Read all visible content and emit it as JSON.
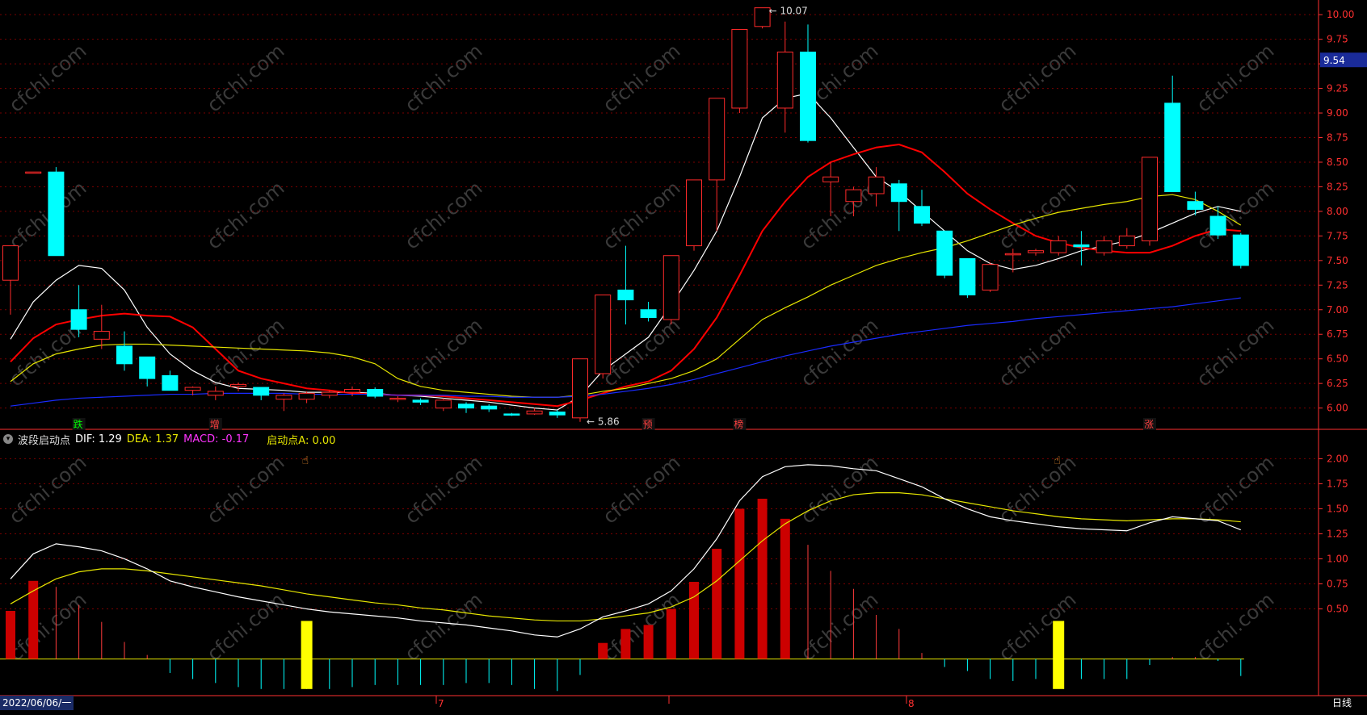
{
  "hud": {
    "indicator_name": "波段启动点",
    "dif_label": "DIF: 1.29",
    "dea_label": "DEA: 1.37",
    "macd_label": "MACD: -0.17",
    "start_label": "启动点A: 0.00"
  },
  "footer": {
    "date": "2022/06/06/一",
    "period": "日线"
  },
  "price_tag": "9.54",
  "colors": {
    "up": "#ff2a2a",
    "down": "#00ffff",
    "ma1": "#ffffff",
    "ma2": "#ff0000",
    "ma3": "#e6e600",
    "ma4": "#1a2bff",
    "grid": "#7a0000",
    "axis": "#ff3030",
    "dif": "#ffffff",
    "dea": "#e6e600",
    "signal": "#ffff00",
    "watermark": "#3a3a3a"
  },
  "watermark": "cfchi.com",
  "chart_data": [
    {
      "type": "candlestick",
      "ylim": [
        5.8,
        10.1
      ],
      "yticks": [
        "6.00",
        "6.25",
        "6.50",
        "6.75",
        "7.00",
        "7.25",
        "7.50",
        "7.75",
        "8.00",
        "8.25",
        "8.50",
        "8.75",
        "9.00",
        "9.25",
        "9.50",
        "9.75",
        "10.00"
      ],
      "candles": [
        {
          "o": 7.3,
          "h": 7.65,
          "l": 6.95,
          "c": 7.65
        },
        {
          "o": 8.4,
          "h": 8.4,
          "l": 8.4,
          "c": 8.4
        },
        {
          "o": 8.4,
          "h": 8.45,
          "l": 7.55,
          "c": 7.55
        },
        {
          "o": 7.0,
          "h": 7.25,
          "l": 6.72,
          "c": 6.8
        },
        {
          "o": 6.7,
          "h": 7.05,
          "l": 6.6,
          "c": 6.78
        },
        {
          "o": 6.63,
          "h": 6.78,
          "l": 6.38,
          "c": 6.45
        },
        {
          "o": 6.52,
          "h": 6.52,
          "l": 6.22,
          "c": 6.3
        },
        {
          "o": 6.33,
          "h": 6.38,
          "l": 6.18,
          "c": 6.18
        },
        {
          "o": 6.18,
          "h": 6.22,
          "l": 6.13,
          "c": 6.21
        },
        {
          "o": 6.13,
          "h": 6.22,
          "l": 6.08,
          "c": 6.17
        },
        {
          "o": 6.22,
          "h": 6.26,
          "l": 6.17,
          "c": 6.24
        },
        {
          "o": 6.21,
          "h": 6.21,
          "l": 6.08,
          "c": 6.13
        },
        {
          "o": 6.09,
          "h": 6.15,
          "l": 5.97,
          "c": 6.13
        },
        {
          "o": 6.09,
          "h": 6.17,
          "l": 6.05,
          "c": 6.15
        },
        {
          "o": 6.13,
          "h": 6.18,
          "l": 6.1,
          "c": 6.16
        },
        {
          "o": 6.16,
          "h": 6.22,
          "l": 6.12,
          "c": 6.19
        },
        {
          "o": 6.19,
          "h": 6.21,
          "l": 6.1,
          "c": 6.12
        },
        {
          "o": 6.1,
          "h": 6.12,
          "l": 6.06,
          "c": 6.1
        },
        {
          "o": 6.08,
          "h": 6.1,
          "l": 6.03,
          "c": 6.06
        },
        {
          "o": 6.0,
          "h": 6.1,
          "l": 5.97,
          "c": 6.08
        },
        {
          "o": 6.04,
          "h": 6.06,
          "l": 5.95,
          "c": 6.0
        },
        {
          "o": 6.02,
          "h": 6.04,
          "l": 5.96,
          "c": 5.99
        },
        {
          "o": 5.94,
          "h": 5.95,
          "l": 5.92,
          "c": 5.93
        },
        {
          "o": 5.94,
          "h": 6.0,
          "l": 5.93,
          "c": 5.97
        },
        {
          "o": 5.96,
          "h": 5.98,
          "l": 5.9,
          "c": 5.93
        },
        {
          "o": 5.9,
          "h": 6.5,
          "l": 5.86,
          "c": 6.5
        },
        {
          "o": 6.35,
          "h": 7.15,
          "l": 6.3,
          "c": 7.15
        },
        {
          "o": 7.2,
          "h": 7.65,
          "l": 6.85,
          "c": 7.1
        },
        {
          "o": 7.0,
          "h": 7.08,
          "l": 6.88,
          "c": 6.92
        },
        {
          "o": 6.9,
          "h": 7.55,
          "l": 6.85,
          "c": 7.55
        },
        {
          "o": 7.65,
          "h": 8.32,
          "l": 7.6,
          "c": 8.32
        },
        {
          "o": 8.32,
          "h": 9.15,
          "l": 7.8,
          "c": 9.15
        },
        {
          "o": 9.05,
          "h": 9.85,
          "l": 9.0,
          "c": 9.85
        },
        {
          "o": 9.88,
          "h": 10.07,
          "l": 9.86,
          "c": 10.07
        },
        {
          "o": 9.05,
          "h": 9.93,
          "l": 8.8,
          "c": 9.62
        },
        {
          "o": 9.62,
          "h": 9.9,
          "l": 8.7,
          "c": 8.72
        },
        {
          "o": 8.3,
          "h": 8.5,
          "l": 7.95,
          "c": 8.35
        },
        {
          "o": 8.1,
          "h": 8.25,
          "l": 7.95,
          "c": 8.22
        },
        {
          "o": 8.18,
          "h": 8.45,
          "l": 8.05,
          "c": 8.35
        },
        {
          "o": 8.28,
          "h": 8.32,
          "l": 7.8,
          "c": 8.1
        },
        {
          "o": 8.05,
          "h": 8.22,
          "l": 7.85,
          "c": 7.88
        },
        {
          "o": 7.8,
          "h": 7.8,
          "l": 7.32,
          "c": 7.35
        },
        {
          "o": 7.52,
          "h": 7.52,
          "l": 7.12,
          "c": 7.15
        },
        {
          "o": 7.2,
          "h": 7.48,
          "l": 7.18,
          "c": 7.46
        },
        {
          "o": 7.57,
          "h": 7.62,
          "l": 7.38,
          "c": 7.57
        },
        {
          "o": 7.58,
          "h": 7.62,
          "l": 7.55,
          "c": 7.6
        },
        {
          "o": 7.58,
          "h": 7.75,
          "l": 7.55,
          "c": 7.7
        },
        {
          "o": 7.66,
          "h": 7.8,
          "l": 7.45,
          "c": 7.64
        },
        {
          "o": 7.58,
          "h": 7.75,
          "l": 7.55,
          "c": 7.7
        },
        {
          "o": 7.65,
          "h": 7.83,
          "l": 7.62,
          "c": 7.75
        },
        {
          "o": 7.7,
          "h": 8.55,
          "l": 7.65,
          "c": 8.55
        },
        {
          "o": 9.1,
          "h": 9.38,
          "l": 8.2,
          "c": 8.2
        },
        {
          "o": 8.1,
          "h": 8.2,
          "l": 7.96,
          "c": 8.02
        },
        {
          "o": 7.95,
          "h": 8.05,
          "l": 7.72,
          "c": 7.76
        },
        {
          "o": 7.76,
          "h": 7.78,
          "l": 7.42,
          "c": 7.45
        }
      ],
      "ma_lines": [
        {
          "name": "ma1",
          "values": [
            6.7,
            7.08,
            7.3,
            7.45,
            7.42,
            7.2,
            6.82,
            6.55,
            6.38,
            6.26,
            6.2,
            6.19,
            6.18,
            6.16,
            6.16,
            6.16,
            6.15,
            6.13,
            6.12,
            6.1,
            6.08,
            6.06,
            6.03,
            6.0,
            5.98,
            6.12,
            6.38,
            6.55,
            6.72,
            7.05,
            7.4,
            7.8,
            8.35,
            8.95,
            9.15,
            9.2,
            8.95,
            8.65,
            8.35,
            8.2,
            8.0,
            7.8,
            7.6,
            7.47,
            7.41,
            7.45,
            7.52,
            7.6,
            7.65,
            7.7,
            7.78,
            7.88,
            7.98,
            8.05,
            8.0
          ]
        },
        {
          "name": "ma2",
          "values": [
            6.47,
            6.71,
            6.85,
            6.9,
            6.94,
            6.96,
            6.94,
            6.93,
            6.82,
            6.6,
            6.38,
            6.3,
            6.25,
            6.2,
            6.18,
            6.15,
            6.14,
            6.13,
            6.13,
            6.12,
            6.1,
            6.08,
            6.06,
            6.04,
            6.02,
            6.08,
            6.15,
            6.22,
            6.27,
            6.38,
            6.6,
            6.92,
            7.35,
            7.8,
            8.1,
            8.35,
            8.5,
            8.58,
            8.65,
            8.68,
            8.6,
            8.4,
            8.18,
            8.02,
            7.88,
            7.75,
            7.68,
            7.63,
            7.6,
            7.58,
            7.58,
            7.65,
            7.75,
            7.82,
            7.8
          ]
        },
        {
          "name": "ma3",
          "values": [
            6.27,
            6.45,
            6.55,
            6.6,
            6.64,
            6.65,
            6.65,
            6.64,
            6.63,
            6.62,
            6.61,
            6.6,
            6.59,
            6.58,
            6.56,
            6.52,
            6.45,
            6.3,
            6.22,
            6.18,
            6.16,
            6.14,
            6.12,
            6.11,
            6.11,
            6.13,
            6.17,
            6.2,
            6.25,
            6.3,
            6.38,
            6.5,
            6.7,
            6.9,
            7.02,
            7.13,
            7.25,
            7.35,
            7.45,
            7.52,
            7.58,
            7.63,
            7.7,
            7.78,
            7.86,
            7.93,
            7.99,
            8.03,
            8.07,
            8.1,
            8.15,
            8.17,
            8.12,
            8.0,
            7.86
          ]
        },
        {
          "name": "ma4",
          "values": [
            6.02,
            6.05,
            6.08,
            6.1,
            6.11,
            6.12,
            6.13,
            6.14,
            6.14,
            6.15,
            6.15,
            6.15,
            6.15,
            6.14,
            6.14,
            6.14,
            6.14,
            6.13,
            6.13,
            6.13,
            6.12,
            6.12,
            6.11,
            6.11,
            6.11,
            6.12,
            6.14,
            6.17,
            6.2,
            6.24,
            6.29,
            6.35,
            6.41,
            6.47,
            6.53,
            6.58,
            6.63,
            6.67,
            6.71,
            6.75,
            6.78,
            6.81,
            6.84,
            6.86,
            6.88,
            6.91,
            6.93,
            6.95,
            6.97,
            6.99,
            7.01,
            7.03,
            7.06,
            7.09,
            7.12
          ]
        }
      ],
      "annotations": [
        {
          "text": "10.07",
          "candle": 33,
          "price": 10.07
        },
        {
          "text": "5.86",
          "candle": 25,
          "price": 5.86
        },
        {
          "text": "跌",
          "candle": 3,
          "color": "#00ff00"
        },
        {
          "text": "增",
          "candle": 9,
          "color": "#ff4040"
        },
        {
          "text": "预",
          "candle": 28,
          "color": "#ff4040"
        },
        {
          "text": "榜",
          "candle": 32,
          "color": "#ff4040"
        },
        {
          "text": "涨",
          "candle": 50,
          "color": "#ff4040"
        }
      ]
    },
    {
      "type": "macd",
      "ylim": [
        -0.35,
        2.1
      ],
      "yticks": [
        "0.50",
        "0.75",
        "1.00",
        "1.25",
        "1.50",
        "1.75",
        "2.00"
      ],
      "dif": [
        0.8,
        1.05,
        1.15,
        1.12,
        1.08,
        1.0,
        0.9,
        0.78,
        0.72,
        0.67,
        0.62,
        0.58,
        0.54,
        0.5,
        0.47,
        0.45,
        0.43,
        0.41,
        0.38,
        0.36,
        0.34,
        0.31,
        0.28,
        0.24,
        0.22,
        0.3,
        0.42,
        0.48,
        0.55,
        0.68,
        0.9,
        1.2,
        1.58,
        1.82,
        1.92,
        1.94,
        1.93,
        1.9,
        1.88,
        1.8,
        1.72,
        1.6,
        1.5,
        1.42,
        1.38,
        1.35,
        1.32,
        1.3,
        1.29,
        1.28,
        1.36,
        1.42,
        1.4,
        1.38,
        1.29
      ],
      "dea": [
        0.55,
        0.68,
        0.8,
        0.87,
        0.9,
        0.9,
        0.88,
        0.85,
        0.82,
        0.79,
        0.76,
        0.73,
        0.69,
        0.65,
        0.62,
        0.59,
        0.56,
        0.54,
        0.51,
        0.49,
        0.46,
        0.43,
        0.41,
        0.39,
        0.38,
        0.38,
        0.4,
        0.43,
        0.46,
        0.52,
        0.62,
        0.78,
        0.98,
        1.18,
        1.35,
        1.48,
        1.58,
        1.64,
        1.66,
        1.66,
        1.64,
        1.6,
        1.56,
        1.52,
        1.48,
        1.45,
        1.42,
        1.4,
        1.39,
        1.38,
        1.39,
        1.4,
        1.4,
        1.39,
        1.37
      ],
      "macd": [
        0.48,
        0.78,
        0.72,
        0.54,
        0.37,
        0.17,
        0.04,
        -0.14,
        -0.2,
        -0.24,
        -0.28,
        -0.3,
        -0.3,
        -0.3,
        -0.3,
        -0.28,
        -0.26,
        -0.26,
        -0.26,
        -0.26,
        -0.24,
        -0.24,
        -0.26,
        -0.3,
        -0.32,
        -0.16,
        0.16,
        0.3,
        0.34,
        0.5,
        0.77,
        1.1,
        1.5,
        1.6,
        1.4,
        1.14,
        0.88,
        0.7,
        0.44,
        0.3,
        0.06,
        -0.08,
        -0.12,
        -0.2,
        -0.22,
        -0.2,
        -0.2,
        -0.2,
        -0.2,
        -0.2,
        -0.06,
        0.02,
        0.02,
        -0.02,
        -0.17
      ],
      "start_signals": [
        13,
        46
      ]
    }
  ]
}
